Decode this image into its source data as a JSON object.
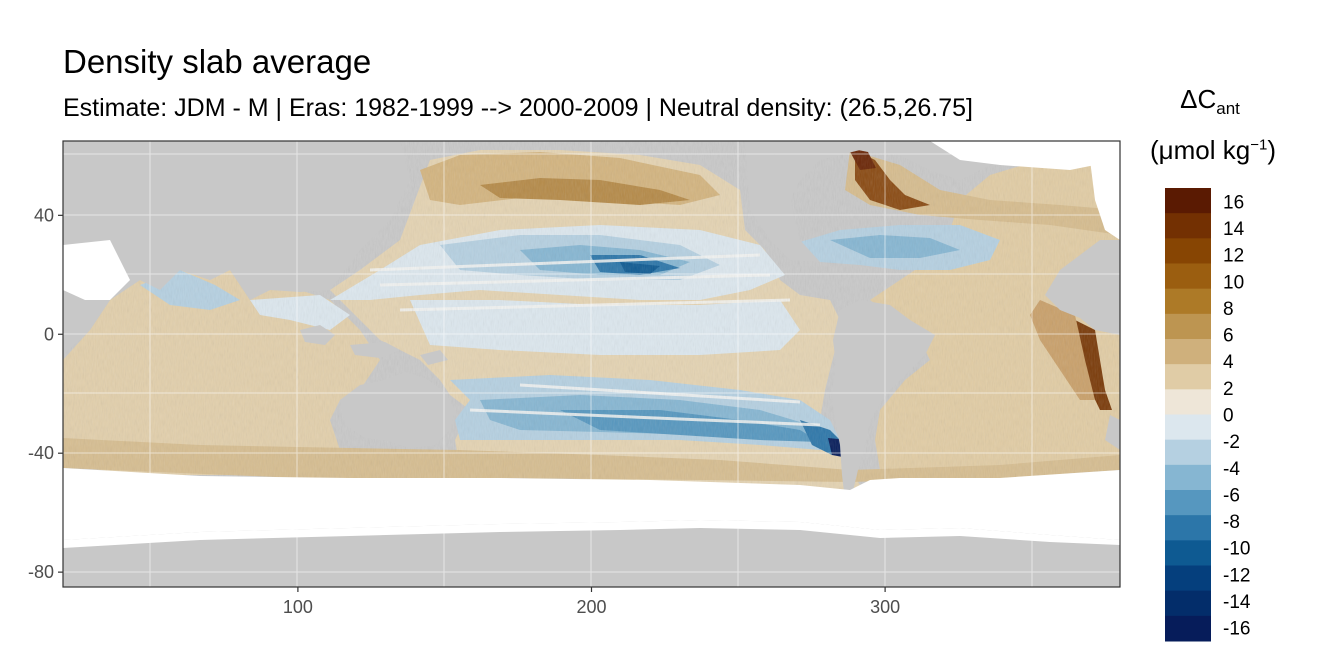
{
  "title": "Density slab average",
  "subtitle": "Estimate: JDM - M | Eras: 1982-1999 --> 2000-2009 | Neutral density: (26.5,26.75]",
  "legend": {
    "title_main": "ΔC",
    "title_sub": "ant",
    "unit_main": "(μmol kg",
    "unit_sup": "−1",
    "unit_close": ")",
    "labels": [
      "16",
      "14",
      "12",
      "10",
      "8",
      "6",
      "4",
      "2",
      "0",
      "-2",
      "-4",
      "-6",
      "-8",
      "-10",
      "-12",
      "-14",
      "-16"
    ],
    "colors": [
      "#5a1a02",
      "#733002",
      "#874503",
      "#9b5e10",
      "#ad7a27",
      "#bd9551",
      "#cfb07c",
      "#e0cca6",
      "#eee6d8",
      "#dce7ee",
      "#b5d0e1",
      "#86b6d2",
      "#5697bf",
      "#2c76a9",
      "#0e5a92",
      "#053f7d",
      "#032d6a",
      "#061c5a"
    ]
  },
  "chart_data": {
    "type": "heatmap",
    "title": "Density slab average",
    "subtitle": "Estimate: JDM - M | Eras: 1982-1999 --> 2000-2009 | Neutral density: (26.5,26.75]",
    "xlabel": "",
    "ylabel": "",
    "xlim": [
      20,
      380
    ],
    "ylim": [
      -85,
      65
    ],
    "x_ticks": [
      100,
      200,
      300
    ],
    "y_ticks": [
      40,
      0,
      -40,
      -80
    ],
    "grid": true,
    "legend_position": "right",
    "color_range": [
      -17,
      17
    ],
    "color_step": 2,
    "land_color": "#c8c8c8",
    "no_data_color": "#ffffff"
  }
}
